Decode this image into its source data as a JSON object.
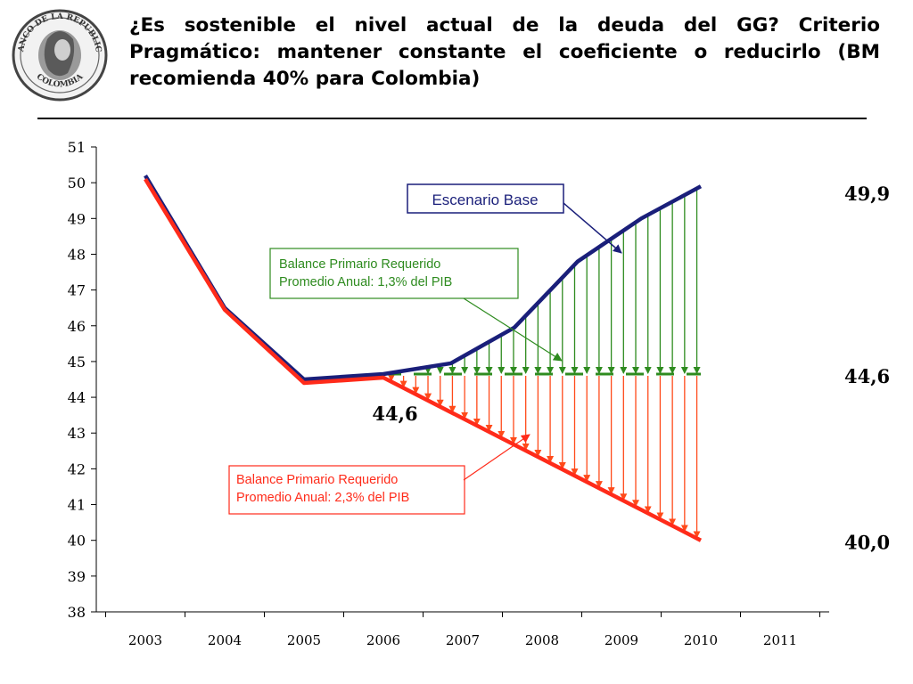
{
  "title": "¿Es sostenible el nivel actual de la deuda del GG? Criterio Pragmático: mantener constante el coeficiente o reducirlo (BM recomienda 40% para Colombia)",
  "logo": {
    "icon": "banco-de-la-republica-seal-icon",
    "text_top": "BANCO DE LA REPUBLICA",
    "text_bottom": "COLOMBIA"
  },
  "colors": {
    "base_line": "#1a1f7a",
    "red_line": "#ff2b1a",
    "green_arrow": "#2e8b1f",
    "orange_arrow": "#ff4a1a",
    "green_box": "#2e8b1f",
    "red_box": "#ff2b1a",
    "blue_box": "#1a1f7a"
  },
  "chart_data": {
    "type": "line",
    "x": [
      2003,
      2004,
      2005,
      2006,
      2007,
      2008,
      2009,
      2010,
      2011
    ],
    "ylim": [
      38,
      51
    ],
    "yticks": [
      38,
      39,
      40,
      41,
      42,
      43,
      44,
      45,
      46,
      47,
      48,
      49,
      50,
      51
    ],
    "grid": false,
    "series": [
      {
        "key": "base",
        "x": [
          2003.0,
          2004.0,
          2005.0,
          2006.0,
          2006.85,
          2007.65,
          2008.45,
          2009.25,
          2010.0
        ],
        "values": [
          50.2,
          46.5,
          44.5,
          44.65,
          44.95,
          45.95,
          47.8,
          49.0,
          49.9
        ]
      },
      {
        "key": "reduce",
        "x": [
          2003.0,
          2004.0,
          2005.0,
          2006.0,
          2010.0
        ],
        "values": [
          50.1,
          46.45,
          44.4,
          44.55,
          40.0
        ]
      },
      {
        "key": "constant",
        "x": [
          2006.0,
          2010.0
        ],
        "values": [
          44.65,
          44.65
        ]
      }
    ],
    "value_labels": [
      {
        "text": "49,9",
        "x": 2011.0,
        "y": 49.7
      },
      {
        "text": "44,6",
        "x": 2011.0,
        "y": 44.6
      },
      {
        "text": "40,0",
        "x": 2011.0,
        "y": 39.95
      },
      {
        "text": "44,6",
        "x": 2006.1,
        "y": 43.55
      }
    ],
    "annotations": [
      {
        "key": "base",
        "lines": [
          "Escenario Base"
        ]
      },
      {
        "key": "green",
        "lines": [
          "Balance Primario Requerido",
          "Promedio Anual: 1,3% del PIB"
        ]
      },
      {
        "key": "red",
        "lines": [
          "Balance Primario Requerido",
          "Promedio Anual: 2,3% del PIB"
        ]
      }
    ]
  }
}
